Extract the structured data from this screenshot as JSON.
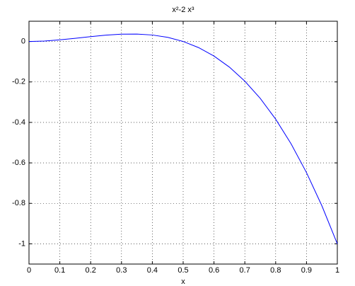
{
  "chart_data": {
    "type": "line",
    "title": "x²-2 x³",
    "x_label": "x",
    "x": [
      0,
      0.05,
      0.1,
      0.15,
      0.2,
      0.25,
      0.3,
      0.35,
      0.4,
      0.45,
      0.5,
      0.55,
      0.6,
      0.65,
      0.7,
      0.75,
      0.8,
      0.85,
      0.9,
      0.95,
      1
    ],
    "values": [
      0,
      0.00225,
      0.008,
      0.01575,
      0.024,
      0.03125,
      0.036,
      0.03675,
      0.032,
      0.02025,
      0,
      -0.03025,
      -0.072,
      -0.12675,
      -0.196,
      -0.28125,
      -0.384,
      -0.50575,
      -0.648,
      -0.81225,
      -1
    ],
    "color": "#0000ff",
    "xlim": [
      0,
      1
    ],
    "xticks": [
      0,
      0.1,
      0.2,
      0.3,
      0.4,
      0.5,
      0.6,
      0.7,
      0.8,
      0.9,
      1
    ],
    "ylim": [
      -1.1,
      0.1
    ],
    "yticks": [
      -1,
      -0.8,
      -0.6,
      -0.4,
      -0.2,
      0
    ],
    "grid": true
  }
}
